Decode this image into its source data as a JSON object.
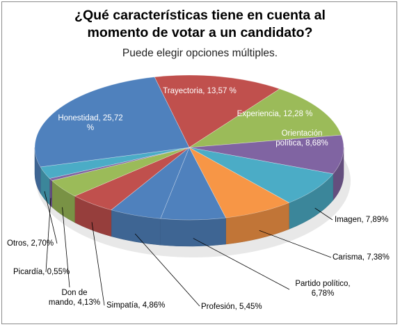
{
  "title_line1": "¿Qué características tiene en cuenta al",
  "title_line2": "momento de votar a un candidato?",
  "subtitle": "Puede elegir opciones múltiples.",
  "chart_data": {
    "type": "pie",
    "title": "¿Qué características tiene en cuenta al momento de votar a un candidato?",
    "subtitle": "Puede elegir opciones múltiples.",
    "slices": [
      {
        "label": "Trayectoria, 13,57 %",
        "value": 13.57,
        "color": "#c0504d"
      },
      {
        "label": "Experiencia, 12,28 %",
        "value": 12.28,
        "color": "#9bbb59"
      },
      {
        "label": "Orientación política, 8,68%",
        "value": 8.68,
        "color": "#8064a2"
      },
      {
        "label": "Imagen, 7,89%",
        "value": 7.89,
        "color": "#4bacc6"
      },
      {
        "label": "Carisma, 7,38%",
        "value": 7.38,
        "color": "#f79646"
      },
      {
        "label": "Partido político, 6,78%",
        "value": 6.78,
        "color": "#4f81bd"
      },
      {
        "label": "Profesión, 5,45%",
        "value": 5.45,
        "color": "#4f81bd"
      },
      {
        "label": "Simpatía, 4,86%",
        "value": 4.86,
        "color": "#c0504d"
      },
      {
        "label": "Don de mando, 4,13%",
        "value": 4.13,
        "color": "#9bbb59"
      },
      {
        "label": "Picardía, 0,55%",
        "value": 0.55,
        "color": "#8064a2"
      },
      {
        "label": "Otros, 2,70%",
        "value": 2.7,
        "color": "#4bacc6"
      },
      {
        "label": "Honestidad, 25,72 %",
        "value": 25.72,
        "color": "#4f81bd"
      }
    ]
  }
}
